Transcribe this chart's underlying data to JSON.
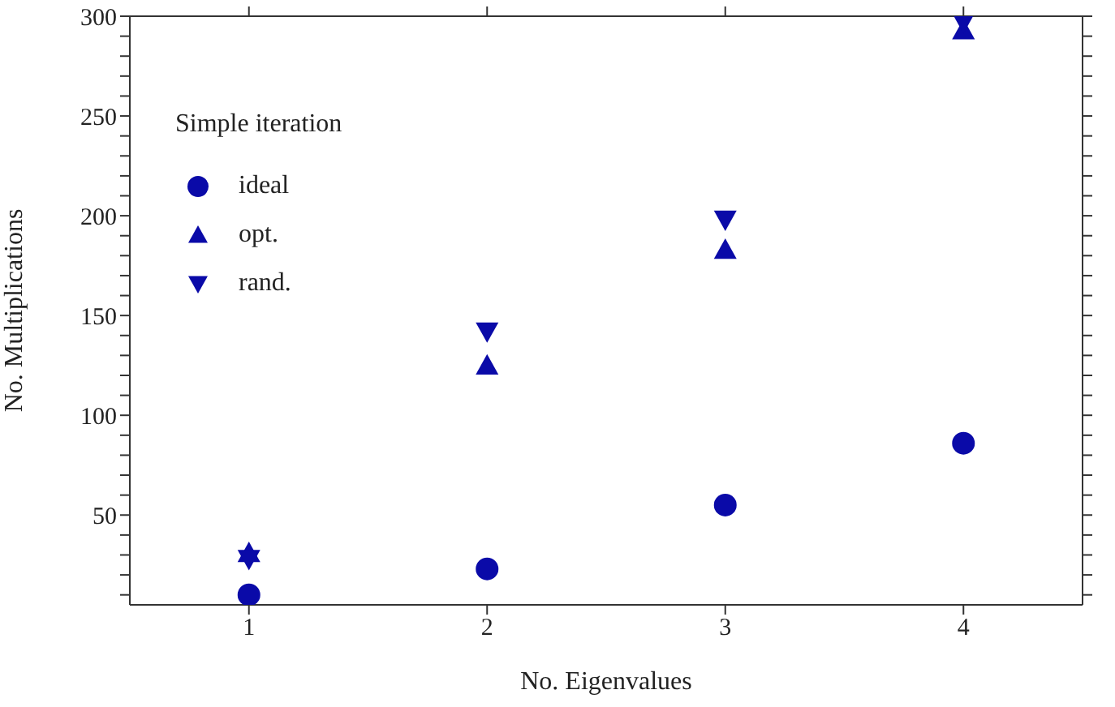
{
  "chart_data": {
    "type": "scatter",
    "xlabel": "No. Eigenvalues",
    "ylabel": "No. Multiplications",
    "legend_title": "Simple iteration",
    "x": [
      1,
      2,
      3,
      4
    ],
    "series": [
      {
        "name": "ideal",
        "color": "#0a0aa8",
        "marker": "circle",
        "values": [
          10,
          23,
          55,
          86
        ]
      },
      {
        "name": "opt.",
        "color": "#0a0aa8",
        "marker": "triangle",
        "values": [
          31,
          125,
          183,
          293
        ]
      },
      {
        "name": "rand.",
        "color": "#0a0aa8",
        "marker": "triangle-down",
        "values": [
          28,
          142,
          198,
          297
        ]
      }
    ],
    "xlim": [
      0.5,
      4.5
    ],
    "xticks": [
      1,
      2,
      3,
      4
    ],
    "ylim": [
      5,
      300
    ],
    "yticks": [
      {
        "value": 10,
        "label": null
      },
      {
        "value": 20,
        "label": null
      },
      {
        "value": 30,
        "label": null
      },
      {
        "value": 40,
        "label": null
      },
      50,
      {
        "value": 60,
        "label": null
      },
      {
        "value": 70,
        "label": null
      },
      {
        "value": 80,
        "label": null
      },
      {
        "value": 90,
        "label": null
      },
      100,
      {
        "value": 110,
        "label": null
      },
      {
        "value": 120,
        "label": null
      },
      {
        "value": 130,
        "label": null
      },
      {
        "value": 140,
        "label": null
      },
      150,
      {
        "value": 160,
        "label": null
      },
      {
        "value": 170,
        "label": null
      },
      {
        "value": 180,
        "label": null
      },
      {
        "value": 190,
        "label": null
      },
      200,
      {
        "value": 210,
        "label": null
      },
      {
        "value": 220,
        "label": null
      },
      {
        "value": 230,
        "label": null
      },
      {
        "value": 240,
        "label": null
      },
      250,
      {
        "value": 260,
        "label": null
      },
      {
        "value": 270,
        "label": null
      },
      {
        "value": 280,
        "label": null
      },
      {
        "value": 290,
        "label": null
      },
      300
    ],
    "legend": "top left"
  }
}
